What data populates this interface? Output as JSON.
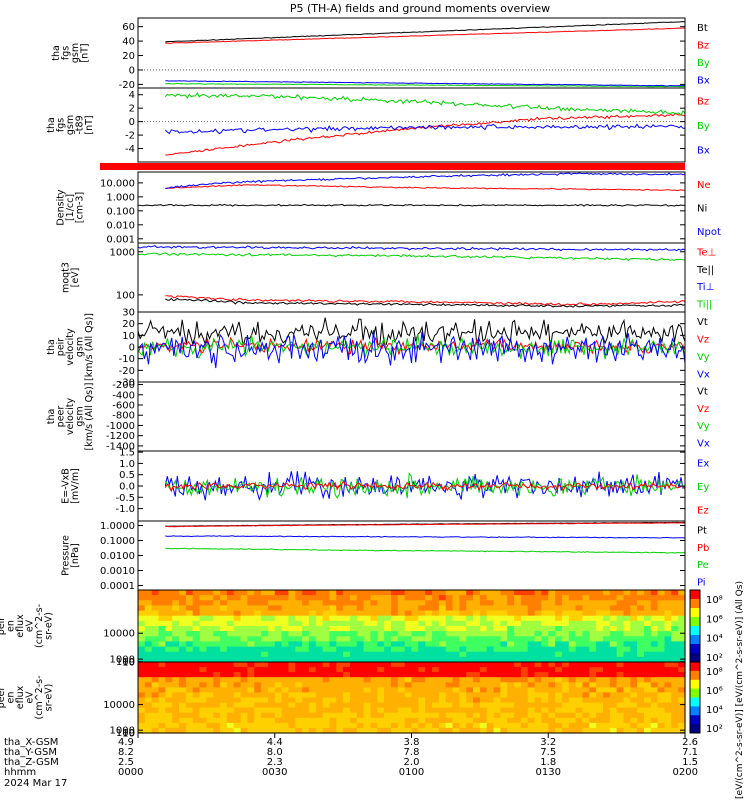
{
  "title": "P5 (TH-A) fields and ground moments overview",
  "colors": {
    "black": "#000000",
    "red": "#ff0000",
    "green": "#00d000",
    "blue": "#0000ff"
  },
  "chart_data": [
    {
      "type": "line",
      "id": "fgs",
      "ylabel": [
        "tha",
        "fgs",
        "gsm",
        "[nT]"
      ],
      "ylim": [
        -25,
        72
      ],
      "yticks": [
        -20,
        0,
        20,
        40,
        60
      ],
      "ytick_labels": [
        "-20",
        "0",
        "20",
        "40",
        "60"
      ],
      "series": [
        {
          "name": "Bt",
          "color": "black",
          "x": [
            0.05,
            1.0
          ],
          "y": [
            39,
            67
          ],
          "noise": 0.3
        },
        {
          "name": "Bz",
          "color": "red",
          "x": [
            0.05,
            1.0
          ],
          "y": [
            37,
            58
          ],
          "noise": 0.3
        },
        {
          "name": "By",
          "color": "green",
          "x": [
            0.05,
            1.0
          ],
          "y": [
            -19,
            -23
          ],
          "noise": 0.3
        },
        {
          "name": "Bx",
          "color": "blue",
          "x": [
            0.05,
            1.0
          ],
          "y": [
            -15,
            -22
          ],
          "noise": 0.3
        }
      ]
    },
    {
      "type": "line",
      "id": "fgs_dsl",
      "ylabel": [
        "tha",
        "fgs",
        "gsm",
        "-t89",
        "[nT]"
      ],
      "ylim": [
        -6,
        5
      ],
      "yticks": [
        -4,
        -2,
        0,
        2,
        4
      ],
      "ytick_labels": [
        "-4",
        "-2",
        "0",
        "2",
        "4"
      ],
      "series": [
        {
          "name": "Bz",
          "color": "red",
          "x": [
            0.05,
            0.25,
            0.5,
            0.75,
            1.0
          ],
          "y": [
            -5,
            -3,
            -1,
            0.5,
            1
          ],
          "noise": 0.15
        },
        {
          "name": "By",
          "color": "green",
          "x": [
            0.05,
            0.25,
            0.5,
            0.75,
            1.0
          ],
          "y": [
            3.8,
            3.8,
            3,
            2,
            1.3
          ],
          "noise": 0.25
        },
        {
          "name": "Bx",
          "color": "blue",
          "x": [
            0.05,
            0.25,
            0.5,
            0.75,
            1.0
          ],
          "y": [
            -1.5,
            -1.2,
            -0.8,
            -0.8,
            -0.7
          ],
          "noise": 0.25
        }
      ]
    },
    {
      "type": "line",
      "id": "density",
      "log": true,
      "ylabel": [
        "Density",
        "[1/cc]",
        "[cm-3]"
      ],
      "ylim": [
        0.0005,
        60
      ],
      "yticks": [
        0.001,
        0.01,
        0.1,
        1,
        10
      ],
      "ytick_labels": [
        "0.001",
        "0.010",
        "0.100",
        "1.000",
        "10.000"
      ],
      "series": [
        {
          "name": "Ne",
          "color": "red",
          "x": [
            0.05,
            0.2,
            0.5,
            1.0
          ],
          "y": [
            4,
            7,
            4.5,
            3
          ],
          "noise": 0.03
        },
        {
          "name": "Ni",
          "color": "black",
          "x": [
            0.0,
            1.0
          ],
          "y": [
            0.25,
            0.25
          ],
          "noise": 0.04
        },
        {
          "name": "Npot",
          "color": "blue",
          "x": [
            0.05,
            0.2,
            0.4,
            0.55,
            0.8,
            1.0
          ],
          "y": [
            4,
            12,
            20,
            30,
            45,
            40
          ],
          "noise": 0.05
        }
      ]
    },
    {
      "type": "line",
      "id": "temperature",
      "log": true,
      "ylabel": [
        "moqt3",
        "[eV]"
      ],
      "ylim": [
        40,
        1600
      ],
      "yticks": [
        100,
        1000
      ],
      "ytick_labels": [
        "100",
        "1000"
      ],
      "series": [
        {
          "name": "Te⊥",
          "color": "red",
          "x": [
            0.05,
            0.2,
            0.5,
            0.8,
            1.0
          ],
          "y": [
            95,
            75,
            70,
            60,
            70
          ],
          "noise": 0.02
        },
        {
          "name": "Te||",
          "color": "black",
          "x": [
            0.05,
            0.2,
            0.5,
            0.8,
            1.0
          ],
          "y": [
            80,
            65,
            60,
            55,
            58
          ],
          "noise": 0.02
        },
        {
          "name": "Ti⊥",
          "color": "blue",
          "x": [
            0.0,
            0.5,
            1.0
          ],
          "y": [
            1300,
            1200,
            1100
          ],
          "noise": 0.02
        },
        {
          "name": "Ti||",
          "color": "green",
          "x": [
            0.0,
            0.5,
            1.0
          ],
          "y": [
            900,
            800,
            650
          ],
          "noise": 0.02
        }
      ]
    },
    {
      "type": "line",
      "id": "peir_velocity",
      "ylabel": [
        "tha",
        "peir",
        "velocity",
        "gsm",
        "[km/s (All Qs)]"
      ],
      "ylim": [
        -30,
        30
      ],
      "yticks": [
        -30,
        -20,
        -10,
        0,
        10,
        20,
        30
      ],
      "ytick_labels": [
        "-30",
        "-20",
        "-10",
        "0",
        "10",
        "20",
        "30"
      ],
      "series": [
        {
          "name": "Vt",
          "color": "black",
          "x": [
            0.0,
            1.0
          ],
          "y": [
            12,
            12
          ],
          "noise": 7
        },
        {
          "name": "Vz",
          "color": "red",
          "x": [
            0.0,
            1.0
          ],
          "y": [
            1,
            1
          ],
          "noise": 4
        },
        {
          "name": "Vy",
          "color": "green",
          "x": [
            0.0,
            1.0
          ],
          "y": [
            0,
            0
          ],
          "noise": 6
        },
        {
          "name": "Vx",
          "color": "blue",
          "x": [
            0.0,
            1.0
          ],
          "y": [
            -2,
            -2
          ],
          "noise": 9
        }
      ]
    },
    {
      "type": "line",
      "id": "peer_velocity",
      "ylabel": [
        "tha",
        "peer",
        "velocity",
        "gsm",
        "[km/s (All Qs)]"
      ],
      "ylim": [
        -1500,
        -150
      ],
      "yticks": [
        -1400,
        -1200,
        -1000,
        -800,
        -600,
        -400,
        -200
      ],
      "ytick_labels": [
        "-1400",
        "-1200",
        "-1000",
        "-800",
        "-600",
        "-400",
        "-200"
      ],
      "series": [
        {
          "name": "Vt",
          "color": "black",
          "x": [],
          "y": [],
          "noise": 0
        },
        {
          "name": "Vz",
          "color": "red",
          "x": [],
          "y": [],
          "noise": 0
        },
        {
          "name": "Vy",
          "color": "green",
          "x": [],
          "y": [],
          "noise": 0
        },
        {
          "name": "Vx",
          "color": "blue",
          "x": [],
          "y": [],
          "noise": 0
        }
      ]
    },
    {
      "type": "line",
      "id": "efield",
      "ylabel": [
        "E=-VxB",
        "[mV/m]"
      ],
      "ylim": [
        -1.55,
        1.55
      ],
      "yticks": [
        -1.0,
        -0.5,
        0.0,
        0.5,
        1.0,
        1.5
      ],
      "ytick_labels": [
        "-1.0",
        "-0.5",
        "0.0",
        "0.5",
        "1.0",
        "1.5"
      ],
      "series": [
        {
          "name": "Ex",
          "color": "blue",
          "x": [
            0.05,
            1.0
          ],
          "y": [
            0,
            0
          ],
          "noise": 0.38
        },
        {
          "name": "Ey",
          "color": "green",
          "x": [
            0.05,
            1.0
          ],
          "y": [
            0,
            0
          ],
          "noise": 0.3
        },
        {
          "name": "Ez",
          "color": "red",
          "x": [
            0.05,
            1.0
          ],
          "y": [
            0,
            0
          ],
          "noise": 0.12
        }
      ]
    },
    {
      "type": "line",
      "id": "pressure",
      "log": true,
      "ylabel": [
        "Pressure",
        "[nPa]"
      ],
      "ylim": [
        5e-05,
        2
      ],
      "yticks": [
        0.0001,
        0.001,
        0.01,
        0.1,
        1
      ],
      "ytick_labels": [
        "0.0001",
        "0.0010",
        "0.0100",
        "0.1000",
        "1.0000"
      ],
      "series": [
        {
          "name": "Pt",
          "color": "black",
          "x": [
            0.05,
            1.0
          ],
          "y": [
            0.9,
            1.6
          ],
          "noise": 0.01
        },
        {
          "name": "Pb",
          "color": "red",
          "x": [
            0.05,
            1.0
          ],
          "y": [
            0.85,
            1.5
          ],
          "noise": 0.01
        },
        {
          "name": "Pe",
          "color": "green",
          "x": [
            0.05,
            0.4,
            1.0
          ],
          "y": [
            0.03,
            0.022,
            0.015
          ],
          "noise": 0.02
        },
        {
          "name": "Pi",
          "color": "blue",
          "x": [
            0.05,
            1.0
          ],
          "y": [
            0.2,
            0.15
          ],
          "noise": 0.02
        }
      ]
    },
    {
      "type": "heatmap",
      "id": "peir_spec",
      "ylabel": [
        "tha",
        "peir",
        "en",
        "eflux",
        "eV",
        "(cm^2-s-",
        "sr-eV)"
      ],
      "ylim": [
        7,
        25000
      ],
      "yticks": [
        10,
        100,
        1000,
        10000
      ],
      "ytick_labels": [
        "10",
        "100",
        "1000",
        "10000"
      ]
    },
    {
      "type": "heatmap",
      "id": "peer_spec",
      "ylabel": [
        "tha",
        "peer",
        "en",
        "eflux",
        "eV",
        "(cm^2-s-",
        "sr-eV)"
      ],
      "ylim": [
        7,
        25000
      ],
      "yticks": [
        10,
        100,
        1000,
        10000
      ],
      "ytick_labels": [
        "10",
        "100",
        "1000",
        "10000"
      ]
    }
  ],
  "colorbar_top": {
    "tick_labels": [
      "10⁸",
      "10⁶",
      "10⁴",
      "10²"
    ]
  },
  "colorbar_bottom": {
    "tick_labels": [
      "10⁸",
      "10⁶",
      "10⁴",
      "10²"
    ]
  },
  "colorbar_label": "[eV/(cm^2-s-sr-eV)] [eV/(cm^2-s-sr-eV)] (All Qs)",
  "xaxis": {
    "rows": [
      {
        "label": "tha_X-GSM",
        "values": [
          "4.9",
          "4.4",
          "3.8",
          "3.2",
          "2.6"
        ]
      },
      {
        "label": "tha_Y-GSM",
        "values": [
          "8.2",
          "8.0",
          "7.8",
          "7.5",
          "7.1"
        ]
      },
      {
        "label": "tha_Z-GSM",
        "values": [
          "2.5",
          "2.3",
          "2.0",
          "1.8",
          "1.5"
        ]
      },
      {
        "label": "hhmm",
        "values": [
          "0000",
          "0030",
          "0100",
          "0130",
          "0200"
        ]
      }
    ],
    "date": "2024 Mar 17"
  }
}
